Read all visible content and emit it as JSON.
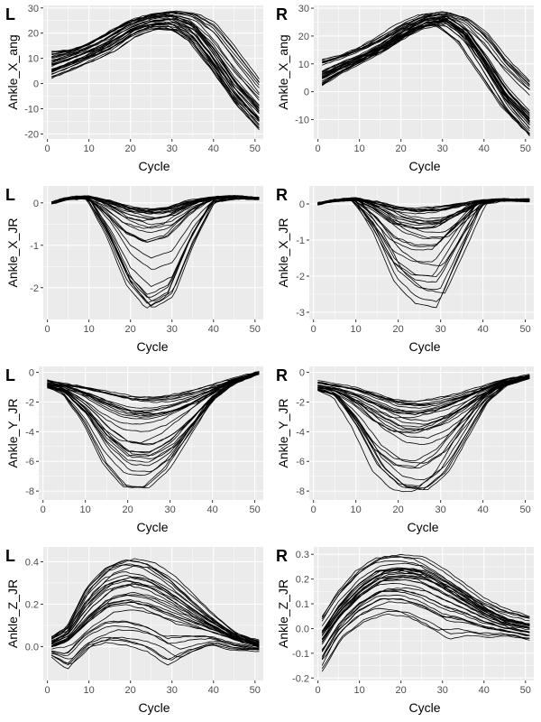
{
  "colors": {
    "panel_bg": "#ebebeb",
    "grid": "#ffffff",
    "line": "#000000",
    "tick_text": "#4d4d4d",
    "tick": "#333333"
  },
  "chart_data": [
    {
      "id": "L1",
      "tag": "L",
      "type": "line",
      "title": "",
      "xlabel": "Cycle",
      "ylabel": "Ankle_X_ang",
      "xlim": [
        -1,
        52
      ],
      "ylim": [
        -22,
        31
      ],
      "xticks": [
        0,
        10,
        20,
        30,
        40,
        50
      ],
      "yticks": [
        -20,
        -10,
        0,
        10,
        20,
        30
      ],
      "x": [
        1,
        5,
        10,
        15,
        20,
        25,
        30,
        35,
        40,
        45,
        51
      ],
      "series_summary": {
        "count": 32,
        "bands": [
          {
            "name": "lower envelope",
            "values": [
              1,
              4,
              8,
              12,
              18,
              21,
              20,
              14,
              2,
              -10,
              -20
            ]
          },
          {
            "name": "median",
            "values": [
              9,
              11,
              14,
              18,
              23,
              26,
              27,
              24,
              14,
              2,
              -9
            ]
          },
          {
            "name": "upper envelope",
            "values": [
              14,
              14,
              17,
              22,
              26,
              28,
              29,
              29,
              27,
              18,
              5
            ]
          }
        ]
      }
    },
    {
      "id": "R1",
      "tag": "R",
      "type": "line",
      "title": "",
      "xlabel": "Cycle",
      "ylabel": "Ankle_X_ang",
      "xlim": [
        -1,
        52
      ],
      "ylim": [
        -17,
        31
      ],
      "xticks": [
        0,
        10,
        20,
        30,
        40,
        50
      ],
      "yticks": [
        -10,
        0,
        10,
        20,
        30
      ],
      "x": [
        1,
        5,
        10,
        15,
        20,
        25,
        30,
        35,
        40,
        45,
        51
      ],
      "series_summary": {
        "count": 32,
        "bands": [
          {
            "name": "lower envelope",
            "values": [
              2,
              6,
              10,
              14,
              19,
              23,
              24,
              18,
              6,
              -6,
              -16
            ]
          },
          {
            "name": "median",
            "values": [
              7,
              10,
              13,
              17,
              22,
              26,
              27,
              22,
              12,
              1,
              -8
            ]
          },
          {
            "name": "upper envelope",
            "values": [
              13,
              14,
              17,
              21,
              25,
              28,
              29,
              28,
              24,
              16,
              8
            ]
          }
        ]
      }
    },
    {
      "id": "L2",
      "tag": "L",
      "type": "line",
      "title": "",
      "xlabel": "Cycle",
      "ylabel": "Ankle_X_JR",
      "xlim": [
        -1,
        52
      ],
      "ylim": [
        -2.75,
        0.4
      ],
      "xticks": [
        0,
        10,
        20,
        30,
        40,
        50
      ],
      "yticks": [
        -2,
        -1,
        0
      ],
      "x": [
        1,
        5,
        10,
        15,
        20,
        25,
        30,
        35,
        40,
        45,
        51
      ],
      "series_summary": {
        "count": 32,
        "bands": [
          {
            "name": "typical",
            "values": [
              0.0,
              0.1,
              0.15,
              0.05,
              -0.1,
              -0.15,
              -0.1,
              0.05,
              0.12,
              0.15,
              0.1
            ]
          },
          {
            "name": "deep dip envelope",
            "values": [
              0.0,
              0.1,
              0.1,
              -0.8,
              -2.0,
              -2.6,
              -2.3,
              -1.0,
              0.0,
              0.1,
              0.1
            ]
          }
        ]
      }
    },
    {
      "id": "R2",
      "tag": "R",
      "type": "line",
      "title": "",
      "xlabel": "Cycle",
      "ylabel": "Ankle_X_JR",
      "xlim": [
        -1,
        52
      ],
      "ylim": [
        -3.2,
        0.5
      ],
      "xticks": [
        0,
        10,
        20,
        30,
        40,
        50
      ],
      "yticks": [
        -3,
        -2,
        -1,
        0
      ],
      "x": [
        1,
        5,
        10,
        15,
        20,
        25,
        30,
        35,
        40,
        45,
        51
      ],
      "series_summary": {
        "count": 32,
        "bands": [
          {
            "name": "typical",
            "values": [
              0.0,
              0.1,
              0.15,
              0.05,
              -0.1,
              -0.15,
              -0.1,
              0.0,
              0.1,
              0.12,
              0.1
            ]
          },
          {
            "name": "deep dip envelope",
            "values": [
              0.0,
              0.1,
              0.1,
              -0.9,
              -2.3,
              -2.9,
              -3.0,
              -1.5,
              0.0,
              0.1,
              0.1
            ]
          }
        ]
      }
    },
    {
      "id": "L3",
      "tag": "L",
      "type": "line",
      "title": "",
      "xlabel": "Cycle",
      "ylabel": "Ankle_Y_JR",
      "xlim": [
        -1,
        52
      ],
      "ylim": [
        -8.6,
        0.4
      ],
      "xticks": [
        0,
        10,
        20,
        30,
        40,
        50
      ],
      "yticks": [
        -8,
        -6,
        -4,
        -2,
        0
      ],
      "x": [
        1,
        5,
        10,
        15,
        20,
        25,
        30,
        35,
        40,
        45,
        51
      ],
      "series_summary": {
        "count": 32,
        "bands": [
          {
            "name": "upper envelope",
            "values": [
              -0.5,
              -0.8,
              -1.0,
              -1.3,
              -1.6,
              -1.7,
              -1.6,
              -1.3,
              -0.9,
              -0.4,
              0.0
            ]
          },
          {
            "name": "median",
            "values": [
              -0.8,
              -1.0,
              -1.6,
              -2.4,
              -3.0,
              -3.1,
              -2.8,
              -2.2,
              -1.4,
              -0.6,
              0.0
            ]
          },
          {
            "name": "lower envelope",
            "values": [
              -1.0,
              -1.5,
              -3.5,
              -6.5,
              -8.3,
              -8.4,
              -7.0,
              -4.5,
              -2.0,
              -0.8,
              -0.1
            ]
          }
        ]
      }
    },
    {
      "id": "R3",
      "tag": "R",
      "type": "line",
      "title": "",
      "xlabel": "Cycle",
      "ylabel": "Ankle_Y_JR",
      "xlim": [
        -1,
        52
      ],
      "ylim": [
        -8.6,
        0.4
      ],
      "xticks": [
        0,
        10,
        20,
        30,
        40,
        50
      ],
      "yticks": [
        -8,
        -6,
        -4,
        -2,
        0
      ],
      "x": [
        1,
        5,
        10,
        15,
        20,
        25,
        30,
        35,
        40,
        45,
        51
      ],
      "series_summary": {
        "count": 32,
        "bands": [
          {
            "name": "upper envelope",
            "values": [
              -0.6,
              -0.8,
              -1.0,
              -1.4,
              -1.8,
              -1.9,
              -1.7,
              -1.4,
              -1.0,
              -0.5,
              -0.2
            ]
          },
          {
            "name": "median",
            "values": [
              -1.0,
              -1.2,
              -1.8,
              -2.6,
              -3.3,
              -3.4,
              -3.0,
              -2.3,
              -1.4,
              -0.7,
              -0.3
            ]
          },
          {
            "name": "lower envelope",
            "values": [
              -1.2,
              -1.6,
              -3.8,
              -6.8,
              -8.2,
              -8.4,
              -7.2,
              -4.6,
              -2.1,
              -0.9,
              -0.4
            ]
          }
        ]
      }
    },
    {
      "id": "L4",
      "tag": "L",
      "type": "line",
      "title": "",
      "xlabel": "Cycle",
      "ylabel": "Ankle_Z_JR",
      "xlim": [
        -1,
        52
      ],
      "ylim": [
        -0.16,
        0.47
      ],
      "xticks": [
        0,
        10,
        20,
        30,
        40,
        50
      ],
      "yticks": [
        0.0,
        0.2,
        0.4
      ],
      "x": [
        1,
        5,
        10,
        15,
        20,
        25,
        30,
        35,
        40,
        45,
        51
      ],
      "series_summary": {
        "count": 32,
        "bands": [
          {
            "name": "lower envelope",
            "values": [
              -0.05,
              -0.12,
              -0.02,
              0.0,
              -0.02,
              -0.05,
              -0.12,
              -0.05,
              0.0,
              -0.02,
              -0.02
            ]
          },
          {
            "name": "median",
            "values": [
              0.0,
              0.03,
              0.12,
              0.2,
              0.22,
              0.2,
              0.16,
              0.12,
              0.08,
              0.04,
              0.0
            ]
          },
          {
            "name": "upper envelope",
            "values": [
              0.05,
              0.1,
              0.3,
              0.4,
              0.44,
              0.42,
              0.35,
              0.25,
              0.15,
              0.07,
              0.03
            ]
          }
        ]
      }
    },
    {
      "id": "R4",
      "tag": "R",
      "type": "line",
      "title": "",
      "xlabel": "Cycle",
      "ylabel": "Ankle_Z_JR",
      "xlim": [
        -1,
        52
      ],
      "ylim": [
        -0.21,
        0.33
      ],
      "xticks": [
        0,
        10,
        20,
        30,
        40,
        50
      ],
      "yticks": [
        -0.2,
        -0.1,
        0.0,
        0.1,
        0.2,
        0.3
      ],
      "x": [
        1,
        5,
        10,
        15,
        20,
        25,
        30,
        35,
        40,
        45,
        51
      ],
      "series_summary": {
        "count": 32,
        "bands": [
          {
            "name": "lower envelope",
            "values": [
              -0.18,
              -0.05,
              0.02,
              0.05,
              0.04,
              0.0,
              -0.05,
              -0.03,
              -0.04,
              -0.03,
              -0.05
            ]
          },
          {
            "name": "median",
            "values": [
              -0.05,
              0.05,
              0.14,
              0.2,
              0.21,
              0.2,
              0.16,
              0.11,
              0.06,
              0.02,
              0.0
            ]
          },
          {
            "name": "upper envelope",
            "values": [
              0.05,
              0.15,
              0.24,
              0.29,
              0.3,
              0.29,
              0.24,
              0.18,
              0.12,
              0.08,
              0.05
            ]
          }
        ]
      }
    }
  ]
}
